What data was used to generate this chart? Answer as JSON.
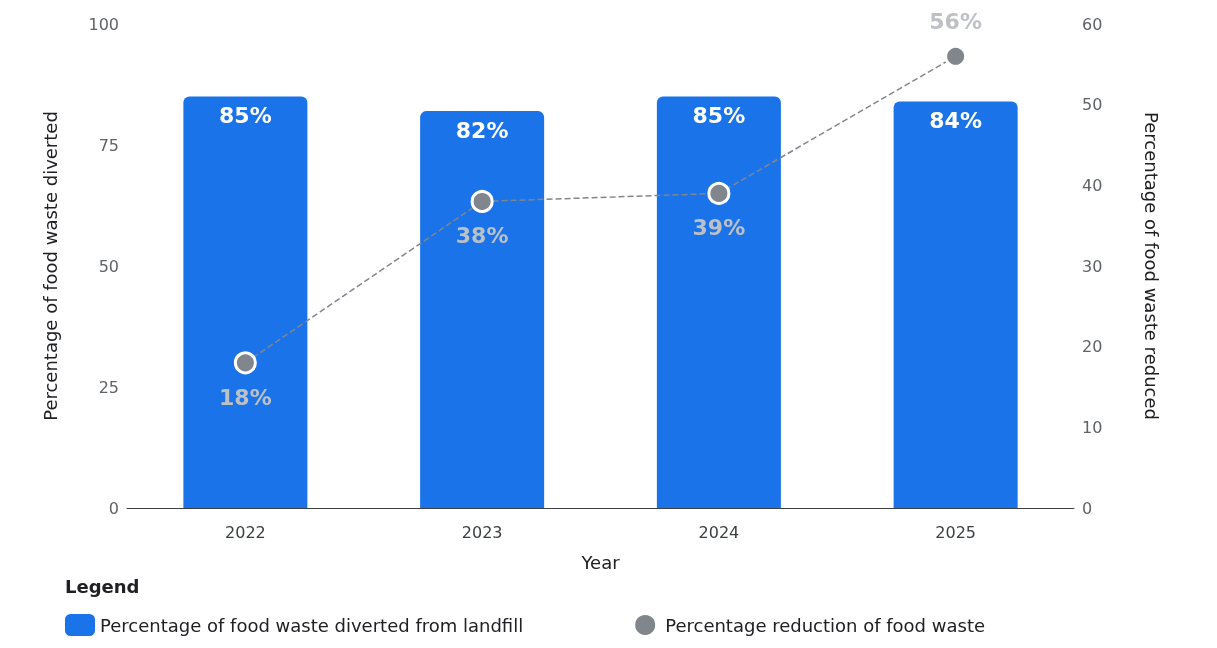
{
  "chart_data": {
    "type": "bar",
    "categories": [
      "2022",
      "2023",
      "2024",
      "2025"
    ],
    "xlabel": "Year",
    "ylabel": "Percentage of food waste diverted",
    "y2label": "Percentage of food waste reduced",
    "legend_title": "Legend",
    "series": [
      {
        "name": "Percentage of food waste diverted from landfill",
        "color": "#1a73e8",
        "values": [
          85,
          82,
          85,
          84
        ],
        "value_labels": [
          "85%",
          "82%",
          "85%",
          "84%"
        ]
      },
      {
        "name": "Percentage reduction of food waste",
        "type": "line",
        "axis": "y2",
        "color": "#80868b",
        "values": [
          18,
          38,
          39,
          56
        ],
        "value_labels": [
          "18%",
          "38%",
          "39%",
          "56%"
        ]
      }
    ],
    "ylim": [
      0,
      100
    ],
    "yticks": [
      0,
      25,
      50,
      75,
      100
    ],
    "y2lim": [
      0,
      60
    ],
    "y2ticks": [
      0,
      10,
      20,
      30,
      40,
      50,
      60
    ],
    "grid": false,
    "legend": "bottom left",
    "marker": "circle",
    "line_style": "dashed"
  }
}
